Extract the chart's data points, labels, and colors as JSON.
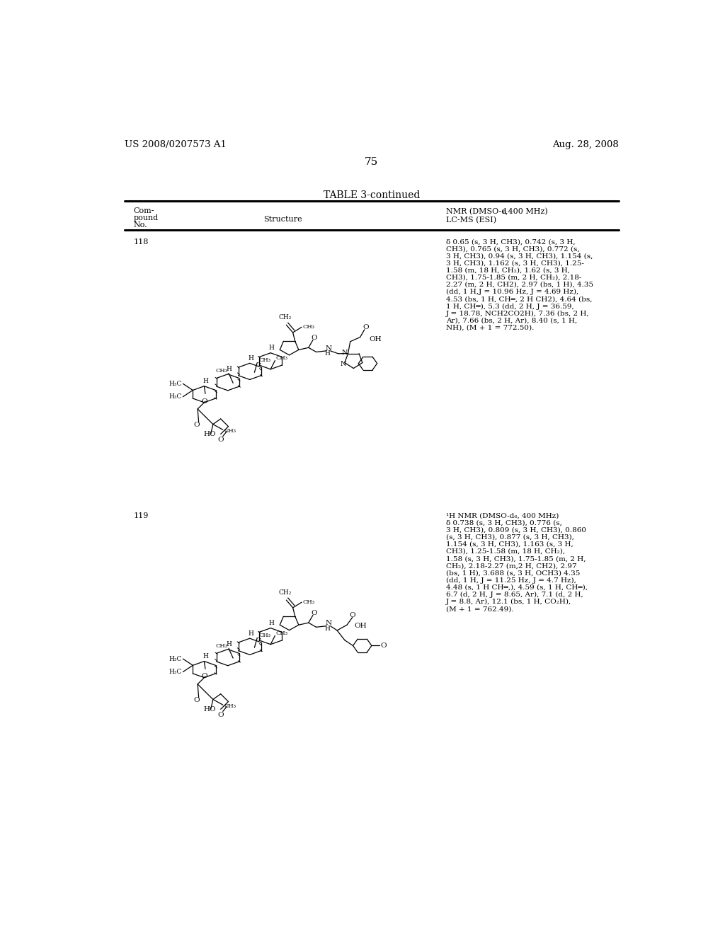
{
  "background_color": "#ffffff",
  "page_header_left": "US 2008/0207573 A1",
  "page_header_right": "Aug. 28, 2008",
  "page_number": "75",
  "table_title": "TABLE 3-continued",
  "nmr118_lines": [
    "δ 0.65 (s, 3 H, CH3), 0.742 (s, 3 H,",
    "CH3), 0.765 (s, 3 H, CH3), 0.772 (s,",
    "3 H, CH3), 0.94 (s, 3 H, CH3), 1.154 (s,",
    "3 H, CH3), 1.162 (s, 3 H, CH3), 1.25-",
    "1.58 (m, 18 H, CH₂), 1.62 (s, 3 H,",
    "CH3), 1.75-1.85 (m, 2 H, CH₂), 2.18-",
    "2.27 (m, 2 H, CH2), 2.97 (bs, 1 H), 4.35",
    "(dd, 1 H,J = 10.96 Hz, J = 4.69 Hz),",
    "4.53 (bs, 1 H, CH═, 2 H CH2), 4.64 (bs,",
    "1 H, CH═), 5.3 (dd, 2 H, J = 36.59,",
    "J = 18.78, NCH2CO2H), 7.36 (bs, 2 H,",
    "Ar), 7.66 (bs, 2 H, Ar), 8.40 (s, 1 H,",
    "NH), (M + 1 = 772.50)."
  ],
  "nmr119_line0": "¹H NMR (DMSO-d₆, 400 MHz)",
  "nmr119_lines": [
    "δ 0.738 (s, 3 H, CH3), 0.776 (s,",
    "3 H, CH3), 0.809 (s, 3 H, CH3), 0.860",
    "(s, 3 H, CH3), 0.877 (s, 3 H, CH3),",
    "1.154 (s, 3 H, CH3), 1.163 (s, 3 H,",
    "CH3), 1.25-1.58 (m, 18 H, CH₂),",
    "1.58 (s, 3 H, CH3), 1.75-1.85 (m, 2 H,",
    "CH₂), 2.18-2.27 (m,2 H, CH2), 2.97",
    "(bs, 1 H), 3.688 (s, 3 H, OCH3) 4.35",
    "(dd, 1 H, J = 11.25 Hz, J = 4.7 Hz),",
    "4.48 (s, 1 H CH═,), 4.59 (s, 1 H, CH═),",
    "6.7 (d, 2 H, J = 8.65, Ar), 7.1 (d, 2 H,",
    "J = 8.8, Ar), 12.1 (bs, 1 H, CO₂H),",
    "(M + 1 = 762.49)."
  ]
}
